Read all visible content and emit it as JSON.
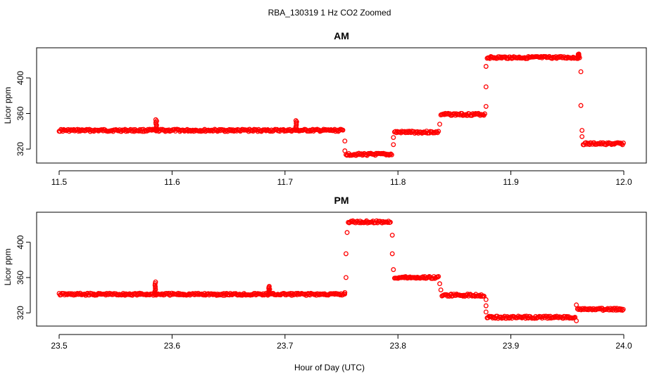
{
  "figure": {
    "title": "RBA_130319  1 Hz CO2 Zoomed",
    "xlabel": "Hour of Day (UTC)"
  },
  "chart_data": [
    {
      "type": "scatter",
      "title": "AM",
      "xlabel": "Hour of Day (UTC)",
      "ylabel": "Licor ppm",
      "xlim": [
        11.5,
        12.0
      ],
      "ylim": [
        309,
        430
      ],
      "xticks": [
        "11.5",
        "11.6",
        "11.7",
        "11.8",
        "11.9",
        "12.0"
      ],
      "xtick_values": [
        11.5,
        11.6,
        11.7,
        11.8,
        11.9,
        12.0
      ],
      "yticks": [
        "320",
        "360",
        "400"
      ],
      "ytick_values": [
        320,
        360,
        400
      ],
      "grid": false,
      "marker": "open-circle",
      "color": "#ff0000",
      "segments": [
        {
          "x_start": 11.5,
          "x_end": 11.752,
          "y": 341
        },
        {
          "x_start": 11.754,
          "x_end": 11.795,
          "y": 314
        },
        {
          "x_start": 11.797,
          "x_end": 11.836,
          "y": 339
        },
        {
          "x_start": 11.838,
          "x_end": 11.877,
          "y": 359
        },
        {
          "x_start": 11.879,
          "x_end": 11.961,
          "y": 423
        },
        {
          "x_start": 11.964,
          "x_end": 12.0,
          "y": 326
        }
      ],
      "spikes": [
        {
          "x": 11.586,
          "y": 353
        },
        {
          "x": 11.71,
          "y": 352
        },
        {
          "x": 11.96,
          "y": 427
        }
      ],
      "transitions": [
        {
          "x": 11.753,
          "y": 329
        },
        {
          "x": 11.753,
          "y": 318
        },
        {
          "x": 11.796,
          "y": 325
        },
        {
          "x": 11.796,
          "y": 333
        },
        {
          "x": 11.837,
          "y": 348
        },
        {
          "x": 11.878,
          "y": 368
        },
        {
          "x": 11.878,
          "y": 390
        },
        {
          "x": 11.878,
          "y": 413
        },
        {
          "x": 11.962,
          "y": 407
        },
        {
          "x": 11.962,
          "y": 369
        },
        {
          "x": 11.963,
          "y": 341
        },
        {
          "x": 11.963,
          "y": 334
        }
      ]
    },
    {
      "type": "scatter",
      "title": "PM",
      "xlabel": "Hour of Day (UTC)",
      "ylabel": "Licor ppm",
      "xlim": [
        23.5,
        24.0
      ],
      "ylim": [
        309,
        430
      ],
      "xticks": [
        "23.5",
        "23.6",
        "23.7",
        "23.8",
        "23.9",
        "24.0"
      ],
      "xtick_values": [
        23.5,
        23.6,
        23.7,
        23.8,
        23.9,
        24.0
      ],
      "yticks": [
        "320",
        "360",
        "400"
      ],
      "ytick_values": [
        320,
        360,
        400
      ],
      "grid": false,
      "marker": "open-circle",
      "color": "#ff0000",
      "segments": [
        {
          "x_start": 23.5,
          "x_end": 23.753,
          "y": 341
        },
        {
          "x_start": 23.756,
          "x_end": 23.794,
          "y": 423
        },
        {
          "x_start": 23.797,
          "x_end": 23.836,
          "y": 360
        },
        {
          "x_start": 23.839,
          "x_end": 23.877,
          "y": 340
        },
        {
          "x_start": 23.879,
          "x_end": 23.957,
          "y": 315
        },
        {
          "x_start": 23.959,
          "x_end": 24.0,
          "y": 324
        }
      ],
      "spikes": [
        {
          "x": 23.585,
          "y": 355
        },
        {
          "x": 23.686,
          "y": 350
        }
      ],
      "transitions": [
        {
          "x": 23.753,
          "y": 343
        },
        {
          "x": 23.754,
          "y": 360
        },
        {
          "x": 23.754,
          "y": 387
        },
        {
          "x": 23.755,
          "y": 411
        },
        {
          "x": 23.795,
          "y": 408
        },
        {
          "x": 23.795,
          "y": 387
        },
        {
          "x": 23.796,
          "y": 369
        },
        {
          "x": 23.837,
          "y": 353
        },
        {
          "x": 23.838,
          "y": 346
        },
        {
          "x": 23.878,
          "y": 335
        },
        {
          "x": 23.878,
          "y": 328
        },
        {
          "x": 23.878,
          "y": 321
        },
        {
          "x": 23.958,
          "y": 311
        },
        {
          "x": 23.958,
          "y": 329
        }
      ]
    }
  ]
}
